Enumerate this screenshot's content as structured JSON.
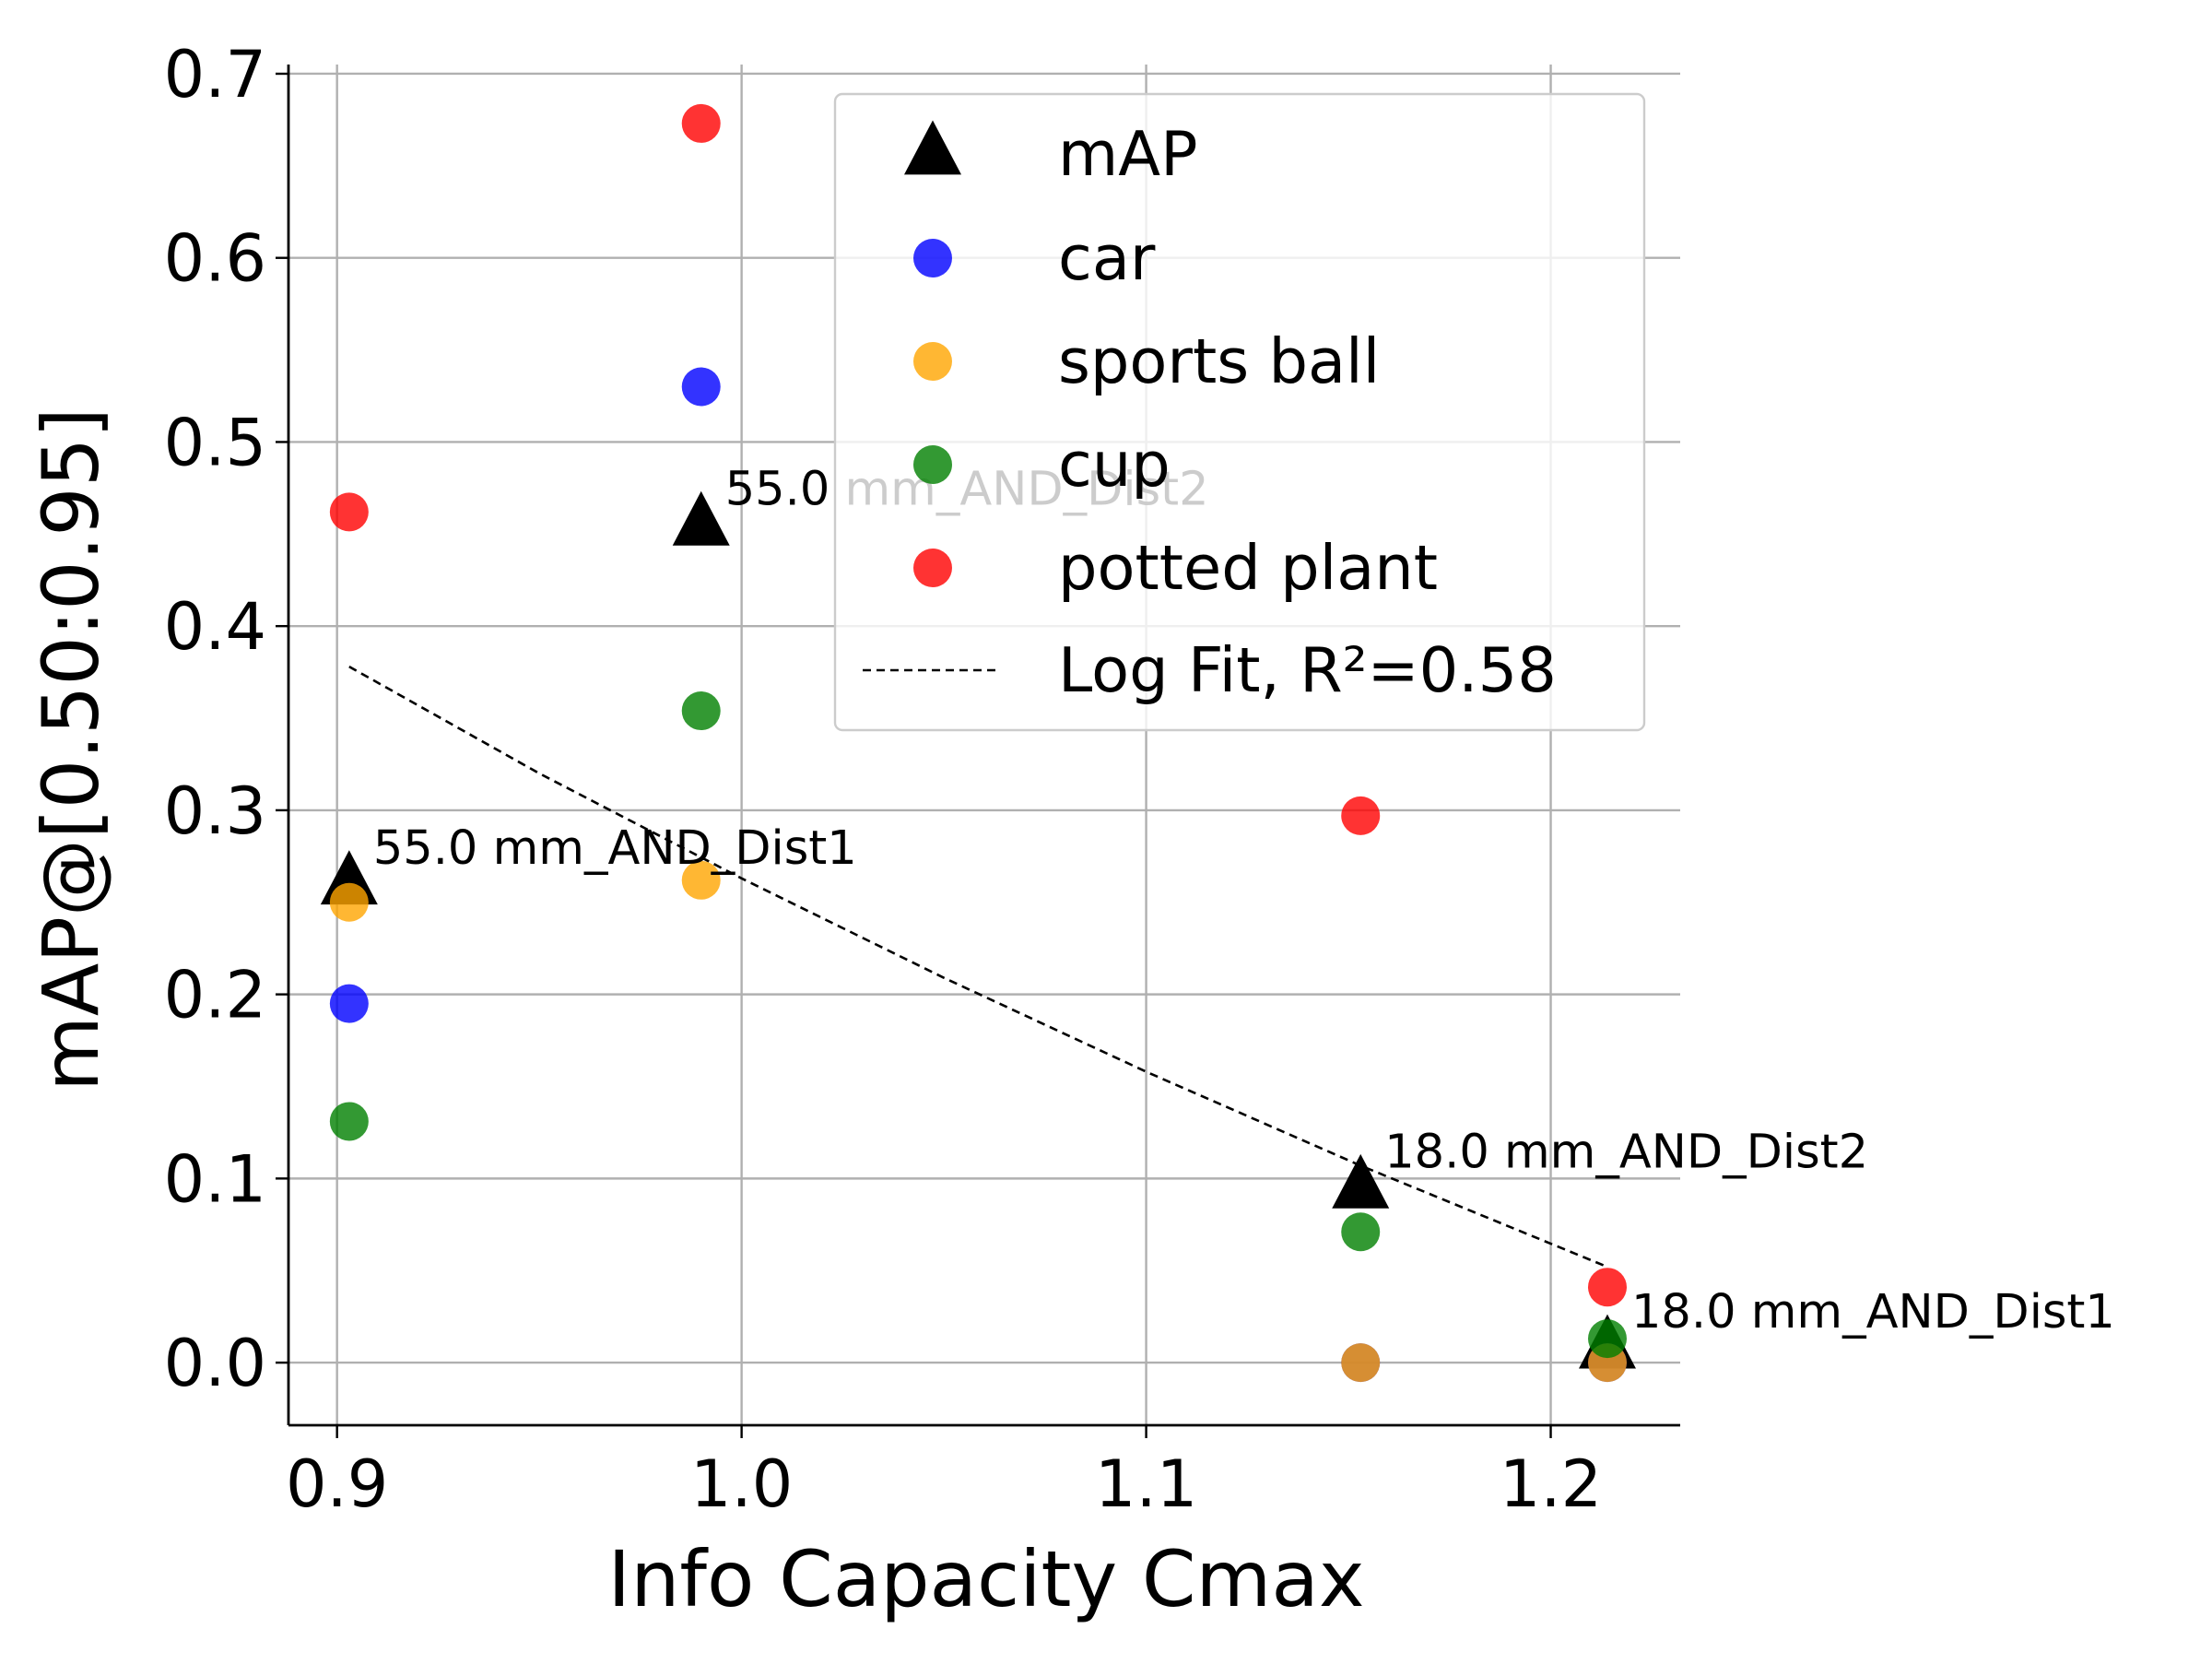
{
  "chart_data": {
    "type": "scatter",
    "xlabel": "Info Capacity Cmax",
    "ylabel": "mAP@[0.50:0.95]",
    "xlim": [
      0.888,
      1.232
    ],
    "ylim": [
      -0.034,
      0.705
    ],
    "xticks": [
      {
        "value": 0.9,
        "label": "0.9"
      },
      {
        "value": 1.0,
        "label": "1.0"
      },
      {
        "value": 1.1,
        "label": "1.1"
      },
      {
        "value": 1.2,
        "label": "1.2"
      }
    ],
    "yticks": [
      {
        "value": 0.0,
        "label": "0.0"
      },
      {
        "value": 0.1,
        "label": "0.1"
      },
      {
        "value": 0.2,
        "label": "0.2"
      },
      {
        "value": 0.3,
        "label": "0.3"
      },
      {
        "value": 0.4,
        "label": "0.4"
      },
      {
        "value": 0.5,
        "label": "0.5"
      },
      {
        "value": 0.6,
        "label": "0.6"
      },
      {
        "value": 0.7,
        "label": "0.7"
      }
    ],
    "grid": true,
    "legend_position": "top-right",
    "series": [
      {
        "name": "mAP",
        "marker": "triangle",
        "color": "#000000",
        "points": [
          {
            "x": 0.903,
            "y": 0.26
          },
          {
            "x": 0.99,
            "y": 0.455
          },
          {
            "x": 1.153,
            "y": 0.095
          },
          {
            "x": 1.214,
            "y": 0.008
          }
        ]
      },
      {
        "name": "car",
        "marker": "circle",
        "color": "#0000ff",
        "points": [
          {
            "x": 0.903,
            "y": 0.195
          },
          {
            "x": 0.99,
            "y": 0.53
          },
          {
            "x": 1.153,
            "y": 0.0
          },
          {
            "x": 1.214,
            "y": 0.0
          }
        ]
      },
      {
        "name": "sports ball",
        "marker": "circle",
        "color": "#ffa500",
        "points": [
          {
            "x": 0.903,
            "y": 0.25
          },
          {
            "x": 0.99,
            "y": 0.262
          },
          {
            "x": 1.153,
            "y": 0.0
          },
          {
            "x": 1.214,
            "y": 0.0
          }
        ]
      },
      {
        "name": "cup",
        "marker": "circle",
        "color": "#008000",
        "points": [
          {
            "x": 0.903,
            "y": 0.131
          },
          {
            "x": 0.99,
            "y": 0.354
          },
          {
            "x": 1.153,
            "y": 0.071
          },
          {
            "x": 1.214,
            "y": 0.013
          }
        ]
      },
      {
        "name": "potted plant",
        "marker": "circle",
        "color": "#ff0000",
        "points": [
          {
            "x": 0.903,
            "y": 0.462
          },
          {
            "x": 0.99,
            "y": 0.673
          },
          {
            "x": 1.153,
            "y": 0.297
          },
          {
            "x": 1.214,
            "y": 0.041
          }
        ]
      }
    ],
    "fit": {
      "name": "Log Fit, R²=0.58",
      "style": "dashed",
      "color": "#000000",
      "points": [
        {
          "x": 0.903,
          "y": 0.378
        },
        {
          "x": 0.95,
          "y": 0.32
        },
        {
          "x": 1.0,
          "y": 0.263
        },
        {
          "x": 1.05,
          "y": 0.209
        },
        {
          "x": 1.1,
          "y": 0.158
        },
        {
          "x": 1.153,
          "y": 0.107
        },
        {
          "x": 1.214,
          "y": 0.052
        }
      ]
    },
    "annotations": [
      {
        "text": "55.0 mm_AND_Dist1",
        "x": 0.903,
        "y": 0.26
      },
      {
        "text": "55.0 mm_AND_Dist2",
        "x": 0.99,
        "y": 0.455
      },
      {
        "text": "18.0 mm_AND_Dist2",
        "x": 1.153,
        "y": 0.095
      },
      {
        "text": "18.0 mm_AND_Dist1",
        "x": 1.214,
        "y": 0.008
      }
    ]
  }
}
